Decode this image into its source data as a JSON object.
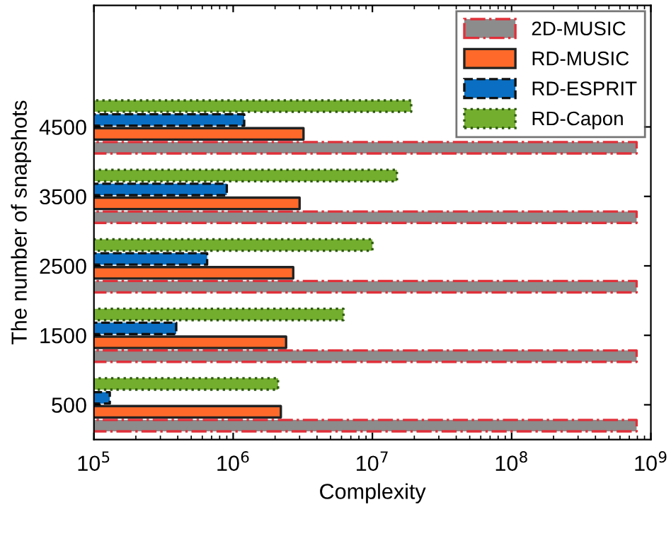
{
  "chart_data": {
    "type": "bar",
    "orientation": "horizontal",
    "xlabel": "Complexity",
    "ylabel": "The number of snapshots",
    "log": "x",
    "xlim": [
      100000,
      1000000000
    ],
    "xticks": [
      {
        "value": 100000,
        "label": "10$^{5}$"
      },
      {
        "value": 1000000,
        "label": "10$^{6}$"
      },
      {
        "value": 10000000,
        "label": "10$^{7}$"
      },
      {
        "value": 100000000,
        "label": "10$^{8}$"
      },
      {
        "value": 1000000000,
        "label": "10$^{9}$"
      }
    ],
    "categories": [
      "4500",
      "3500",
      "2500",
      "1500",
      "500"
    ],
    "legend": "top right",
    "grid": false,
    "series": [
      {
        "name": "2D-MUSIC",
        "color": "#8c8c8c",
        "line_style": "dashdot",
        "values": [
          790000000,
          790000000,
          790000000,
          790000000,
          790000000
        ]
      },
      {
        "name": "RD-MUSIC",
        "color": "#ff6a2a",
        "line_style": "solid",
        "values": [
          3200000,
          3000000,
          2700000,
          2400000,
          2200000
        ]
      },
      {
        "name": "RD-ESPRIT",
        "color": "#0a6fc2",
        "line_style": "dashed",
        "values": [
          1200000,
          900000,
          650000,
          390000,
          130000
        ]
      },
      {
        "name": "RD-Capon",
        "color": "#73ae2e",
        "line_style": "dotted",
        "values": [
          19000000,
          15000000,
          10000000,
          6200000,
          2100000
        ]
      }
    ]
  }
}
